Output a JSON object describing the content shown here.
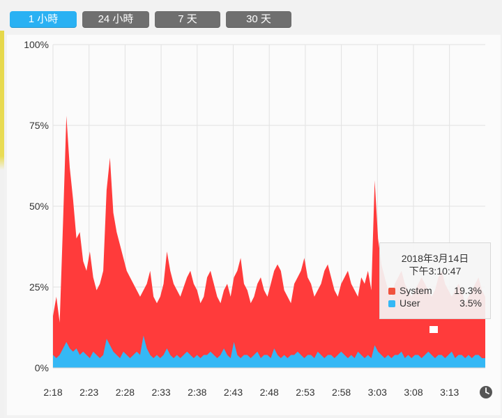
{
  "tabs": [
    {
      "label": "1 小時",
      "active": true
    },
    {
      "label": "24 小時",
      "active": false
    },
    {
      "label": "7 天",
      "active": false
    },
    {
      "label": "30 天",
      "active": false
    }
  ],
  "colors": {
    "accent": "#2ab1f3",
    "system": "#ff3b3b",
    "user": "#35b8f5",
    "grid": "#e2e2e2"
  },
  "tooltip": {
    "date": "2018年3月14日",
    "time": "下午3:10:47",
    "rows": [
      {
        "name": "System",
        "value": "19.3%",
        "color": "#f0523d"
      },
      {
        "name": "User",
        "value": "3.5%",
        "color": "#35b8f5"
      }
    ]
  },
  "clock_icon": "clock-icon",
  "chart_data": {
    "type": "area",
    "stacked": true,
    "ylim": [
      0,
      100
    ],
    "y_ticks": [
      "100%",
      "75%",
      "50%",
      "25%",
      "0%"
    ],
    "x_ticks": [
      "2:18",
      "2:23",
      "2:28",
      "2:33",
      "2:38",
      "2:43",
      "2:48",
      "2:53",
      "2:58",
      "3:03",
      "3:08",
      "3:13"
    ],
    "grid": true,
    "series": [
      {
        "name": "System",
        "color": "#ff3b3b",
        "values": [
          16,
          22,
          14,
          45,
          78,
          62,
          52,
          40,
          42,
          33,
          30,
          36,
          28,
          24,
          26,
          30,
          55,
          65,
          48,
          42,
          38,
          34,
          30,
          28,
          26,
          24,
          22,
          24,
          26,
          30,
          22,
          20,
          22,
          26,
          36,
          30,
          26,
          24,
          22,
          25,
          28,
          30,
          26,
          24,
          20,
          22,
          28,
          30,
          26,
          22,
          20,
          24,
          26,
          22,
          28,
          30,
          34,
          26,
          24,
          20,
          22,
          26,
          28,
          24,
          22,
          26,
          30,
          32,
          30,
          24,
          22,
          20,
          26,
          28,
          30,
          34,
          28,
          26,
          22,
          24,
          26,
          30,
          32,
          28,
          24,
          22,
          26,
          28,
          30,
          26,
          24,
          22,
          28,
          26,
          30,
          24,
          58,
          40,
          32,
          28,
          24,
          22,
          26,
          28,
          30,
          26,
          24,
          22,
          24,
          26,
          28,
          26,
          24,
          22,
          24,
          28,
          30,
          26,
          24,
          22,
          24,
          26,
          24,
          20,
          22,
          24,
          26,
          28,
          24,
          22
        ],
        "note_values": "approximate total stack height (%) per sample"
      },
      {
        "name": "User",
        "color": "#35b8f5",
        "values": [
          4,
          3,
          4,
          6,
          8,
          6,
          5,
          6,
          4,
          5,
          4,
          3,
          5,
          4,
          3,
          4,
          9,
          7,
          5,
          4,
          3,
          5,
          4,
          3,
          4,
          5,
          4,
          10,
          6,
          4,
          3,
          4,
          3,
          4,
          6,
          4,
          3,
          4,
          3,
          4,
          5,
          4,
          3,
          4,
          3,
          4,
          4,
          5,
          4,
          3,
          4,
          6,
          4,
          3,
          8,
          4,
          3,
          4,
          4,
          3,
          4,
          5,
          3,
          4,
          4,
          3,
          6,
          4,
          3,
          4,
          3,
          4,
          4,
          5,
          4,
          3,
          4,
          4,
          3,
          5,
          4,
          3,
          4,
          4,
          3,
          4,
          5,
          4,
          3,
          4,
          3,
          5,
          4,
          3,
          4,
          3,
          7,
          5,
          4,
          3,
          4,
          3,
          4,
          4,
          5,
          3,
          4,
          3,
          4,
          4,
          3,
          4,
          5,
          4,
          3,
          4,
          4,
          3,
          4,
          5,
          3,
          4,
          4,
          3,
          4,
          3,
          4,
          4,
          3,
          3
        ]
      }
    ]
  }
}
